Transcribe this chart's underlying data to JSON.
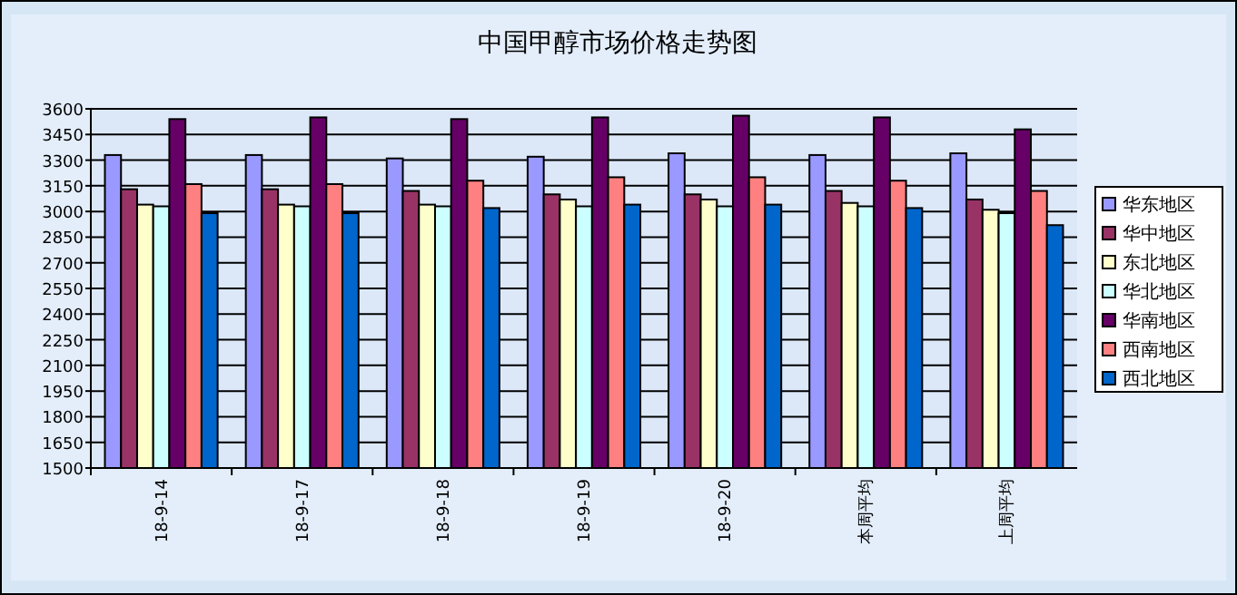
{
  "chart_data": {
    "type": "bar",
    "title": "中国甲醇市场价格走势图",
    "categories": [
      "18-9-14",
      "18-9-17",
      "18-9-18",
      "18-9-19",
      "18-9-20",
      "本周平均",
      "上周平均"
    ],
    "series": [
      {
        "name": "华东地区",
        "color": "#9999ff",
        "values": [
          3330,
          3330,
          3310,
          3320,
          3340,
          3330,
          3340
        ]
      },
      {
        "name": "华中地区",
        "color": "#993366",
        "values": [
          3130,
          3130,
          3120,
          3100,
          3100,
          3120,
          3070
        ]
      },
      {
        "name": "东北地区",
        "color": "#ffffcc",
        "values": [
          3040,
          3040,
          3040,
          3070,
          3070,
          3050,
          3010
        ]
      },
      {
        "name": "华北地区",
        "color": "#ccffff",
        "values": [
          3030,
          3030,
          3030,
          3030,
          3030,
          3030,
          2990
        ]
      },
      {
        "name": "华南地区",
        "color": "#660066",
        "values": [
          3540,
          3550,
          3540,
          3550,
          3560,
          3550,
          3480
        ]
      },
      {
        "name": "西南地区",
        "color": "#ff8080",
        "values": [
          3160,
          3160,
          3180,
          3200,
          3200,
          3180,
          3120
        ]
      },
      {
        "name": "西北地区",
        "color": "#0066cc",
        "values": [
          2990,
          2990,
          3020,
          3040,
          3040,
          3020,
          2920
        ]
      }
    ],
    "ylim": [
      1500,
      3600
    ],
    "yticks": [
      1500,
      1650,
      1800,
      1950,
      2100,
      2250,
      2400,
      2550,
      2700,
      2850,
      3000,
      3150,
      3300,
      3450,
      3600
    ],
    "grid": "y",
    "legend": "right"
  }
}
